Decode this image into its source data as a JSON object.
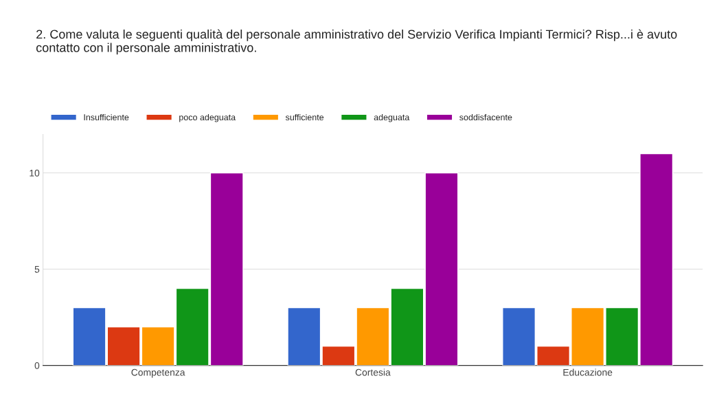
{
  "chart_data": {
    "type": "bar",
    "title": "2. Come valuta le seguenti qualità del personale amministrativo del Servizio Verifica Impianti Termici? Risp...i è avuto contatto con il personale amministrativo.",
    "categories": [
      "Competenza",
      "Cortesia",
      "Educazione"
    ],
    "series": [
      {
        "name": "Insufficiente",
        "color": "#3366cc",
        "values": [
          3,
          3,
          3
        ]
      },
      {
        "name": "poco adeguata",
        "color": "#dc3912",
        "values": [
          2,
          1,
          1
        ]
      },
      {
        "name": "sufficiente",
        "color": "#ff9900",
        "values": [
          2,
          3,
          3
        ]
      },
      {
        "name": "adeguata",
        "color": "#109618",
        "values": [
          4,
          4,
          3
        ]
      },
      {
        "name": "soddisfacente",
        "color": "#990099",
        "values": [
          10,
          10,
          11
        ]
      }
    ],
    "ylim": [
      0,
      12
    ],
    "yticks": [
      0,
      5,
      10
    ],
    "grid": "y",
    "legend": "top left"
  }
}
